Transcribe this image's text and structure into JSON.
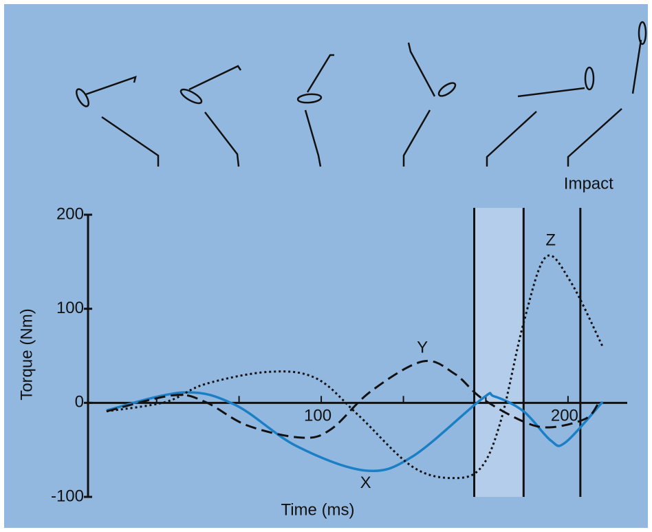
{
  "chart_data": {
    "type": "line",
    "ylabel": "Torque (Nm)",
    "xlabel": "Time (ms)",
    "xlim": [
      5.5,
      224
    ],
    "ylim": [
      -100,
      200
    ],
    "xticks": [
      100,
      200
    ],
    "xminor_ticks": [
      33.3,
      66.7,
      133.3,
      166.7
    ],
    "yticks": [
      -100,
      0,
      100,
      200
    ],
    "shaded_region": [
      162,
      182
    ],
    "shaded_color": "#b4cdea",
    "vlines": [
      162,
      182,
      205
    ],
    "annotation": {
      "text": "Impact",
      "x": 205
    },
    "series": [
      {
        "name": "X",
        "color": "#1a7fc4",
        "style": "solid",
        "label_at": [
          118,
          -86
        ],
        "x": [
          13,
          44,
          65,
          90,
          118,
          137,
          165,
          170,
          182,
          193,
          199,
          214
        ],
        "values": [
          -8,
          11,
          -2,
          -46,
          -72,
          -57,
          4,
          7,
          -9,
          -40,
          -42,
          1
        ]
      },
      {
        "name": "Y",
        "color": "#111111",
        "style": "dashed",
        "label_at": [
          141,
          58
        ],
        "x": [
          13,
          40,
          53,
          70,
          92,
          104,
          120,
          141,
          154,
          165,
          182,
          193,
          207,
          212
        ],
        "values": [
          -9,
          8,
          1,
          -24,
          -37,
          -28,
          12,
          44,
          31,
          5,
          -20,
          -26,
          -17,
          -2
        ]
      },
      {
        "name": "Z",
        "color": "#111111",
        "style": "dotted",
        "label_at": [
          193,
          172
        ],
        "x": [
          13,
          37,
          53,
          79,
          98,
          115,
          137,
          154,
          165,
          173,
          182,
          191,
          201,
          214
        ],
        "values": [
          -9,
          1,
          20,
          33,
          26,
          -13,
          -68,
          -80,
          -68,
          -17,
          85,
          155,
          129,
          60
        ]
      }
    ]
  }
}
